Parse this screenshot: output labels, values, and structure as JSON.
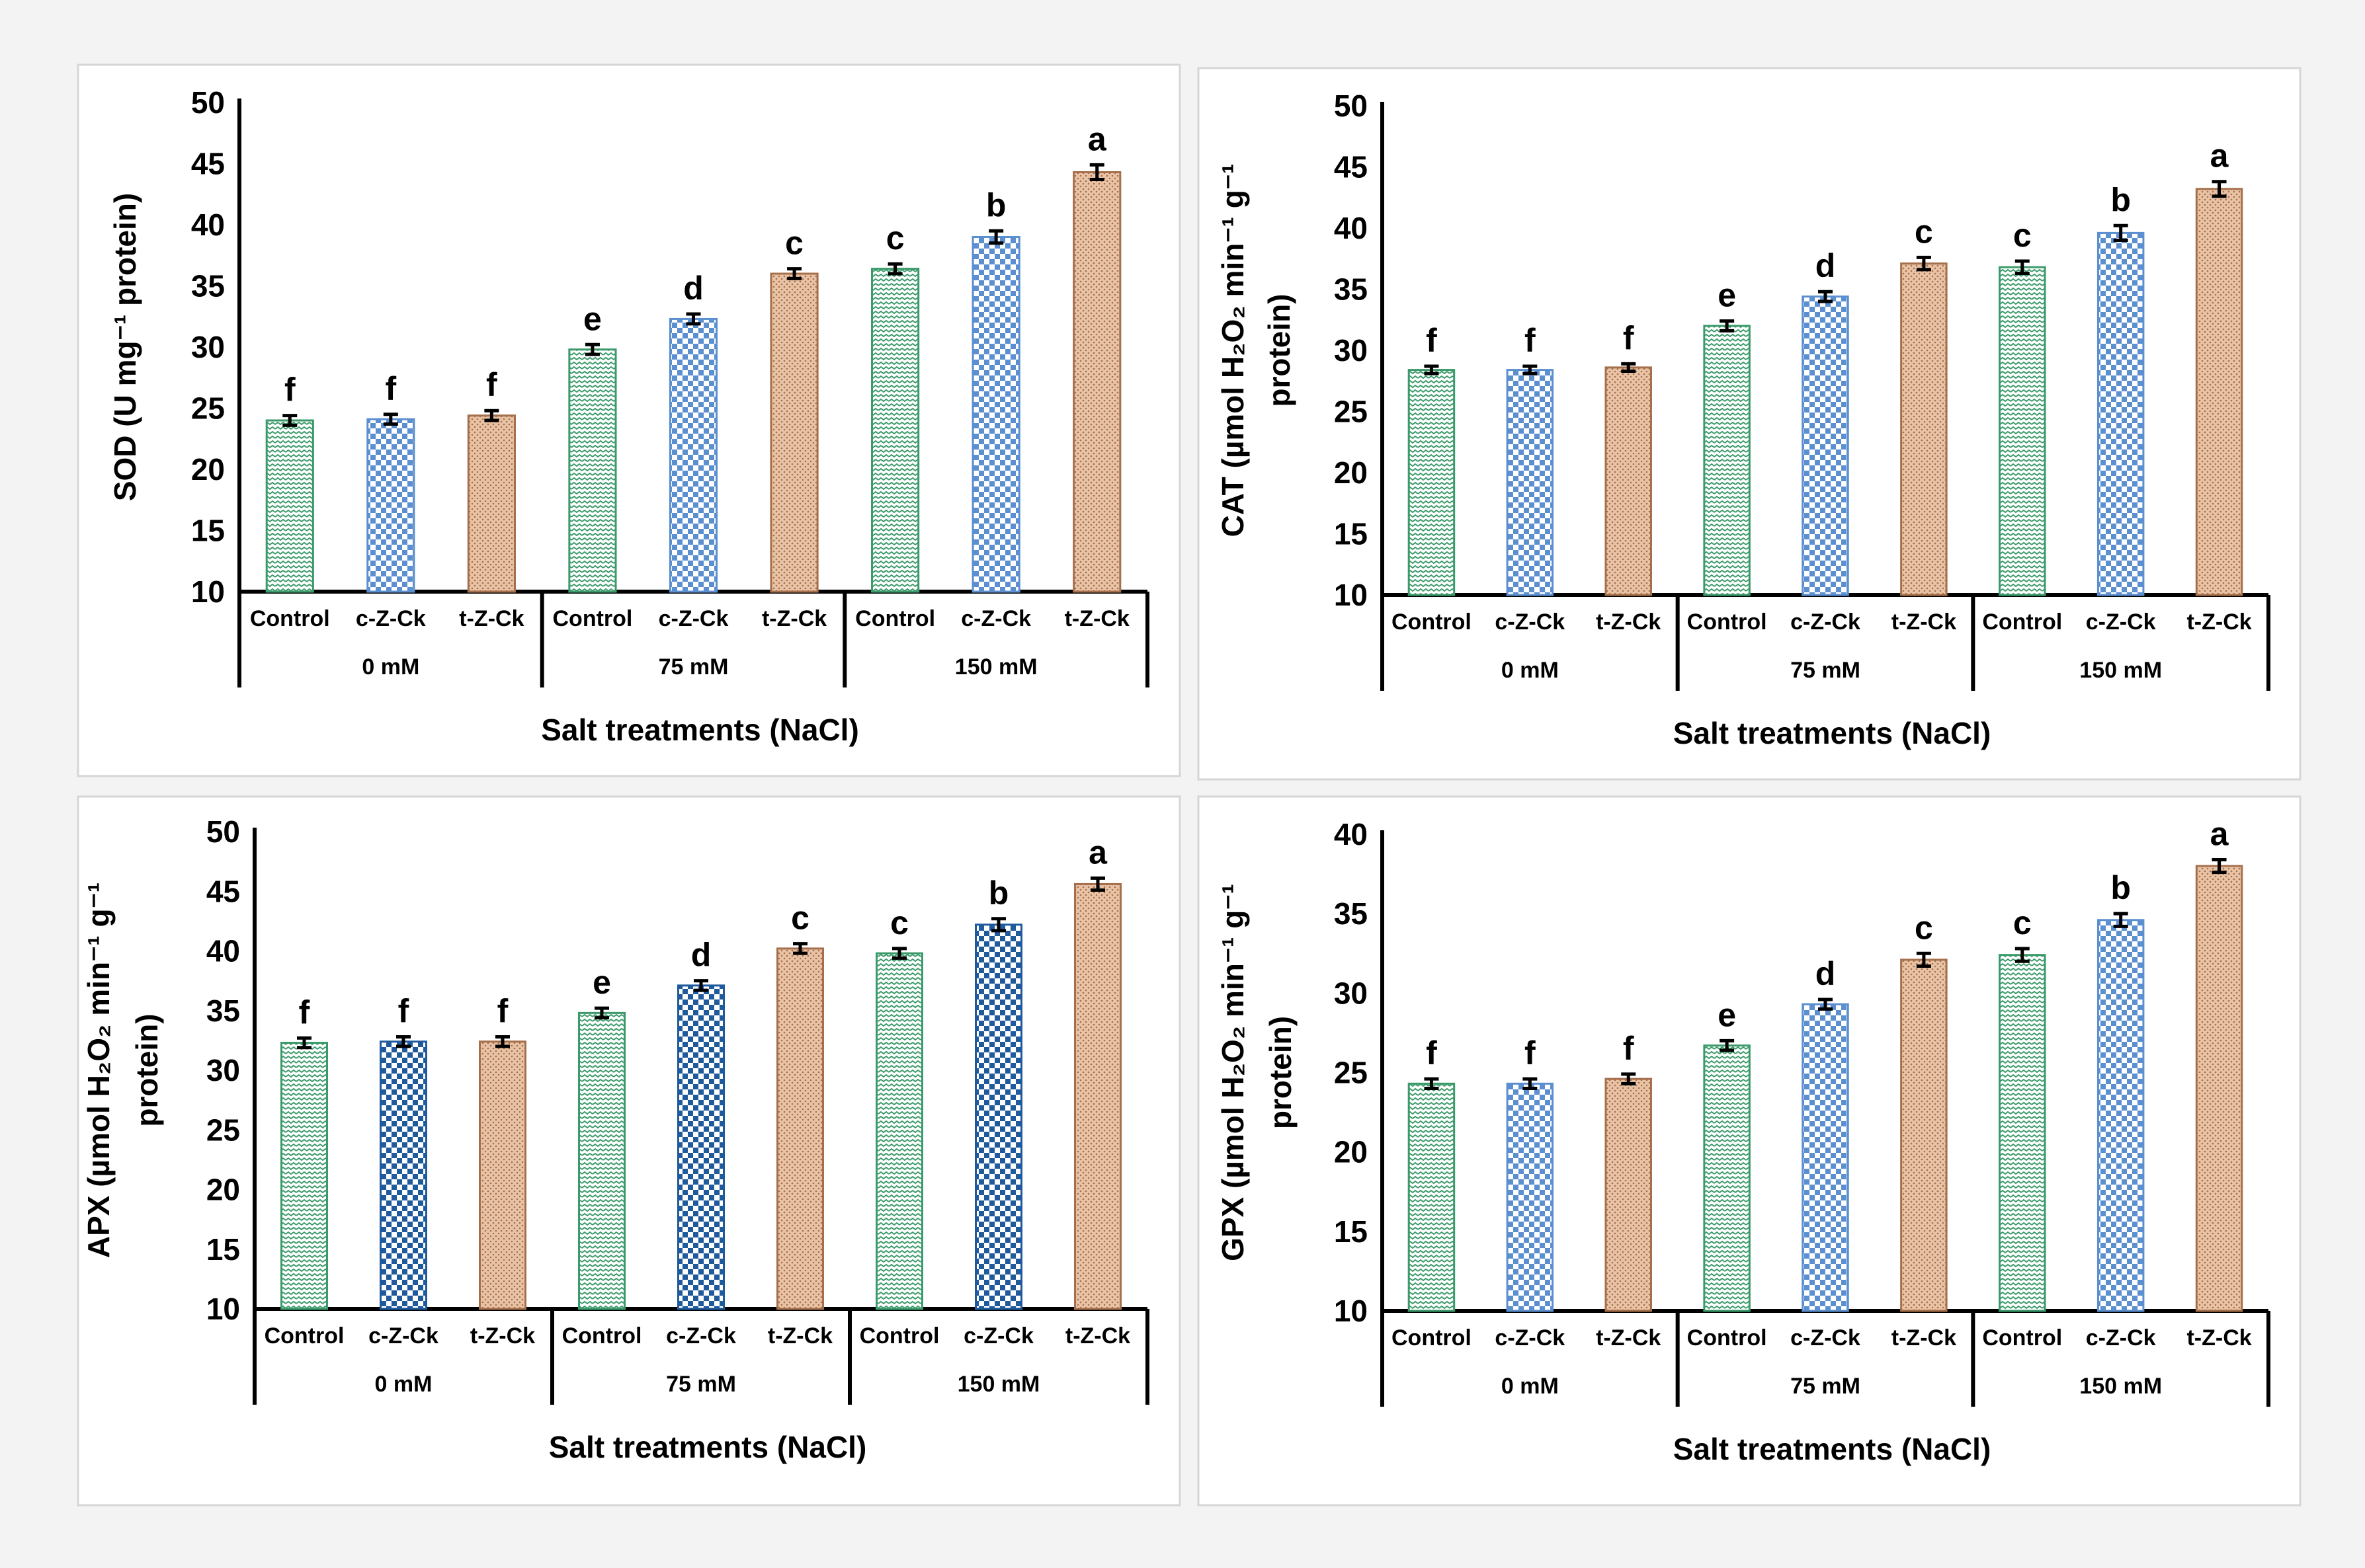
{
  "chart_data": [
    {
      "type": "bar",
      "ylabel_lines": [
        "SOD (U mg⁻¹ protein)"
      ],
      "xlabel": "Salt treatments (NaCl)",
      "ylim": [
        10,
        50
      ],
      "yticks": [
        10,
        15,
        20,
        25,
        30,
        35,
        40,
        45,
        50
      ],
      "groups": [
        "0 mM",
        "75 mM",
        "150 mM"
      ],
      "categories": [
        "Control",
        "c-Z-Ck",
        "t-Z-Ck",
        "Control",
        "c-Z-Ck",
        "t-Z-Ck",
        "Control",
        "c-Z-Ck",
        "t-Z-Ck"
      ],
      "values": [
        24.0,
        24.1,
        24.4,
        29.8,
        32.3,
        36.0,
        36.4,
        39.0,
        44.3
      ],
      "errors": [
        0.4,
        0.4,
        0.4,
        0.4,
        0.4,
        0.4,
        0.4,
        0.5,
        0.6
      ],
      "letters": [
        "f",
        "f",
        "f",
        "e",
        "d",
        "c",
        "c",
        "b",
        "a"
      ]
    },
    {
      "type": "bar",
      "ylabel_lines": [
        "CAT (µmol H₂O₂ min⁻¹ g⁻¹",
        "protein)"
      ],
      "xlabel": "Salt treatments (NaCl)",
      "ylim": [
        10,
        50
      ],
      "yticks": [
        10,
        15,
        20,
        25,
        30,
        35,
        40,
        45,
        50
      ],
      "groups": [
        "0 mM",
        "75 mM",
        "150 mM"
      ],
      "categories": [
        "Control",
        "c-Z-Ck",
        "t-Z-Ck",
        "Control",
        "c-Z-Ck",
        "t-Z-Ck",
        "Control",
        "c-Z-Ck",
        "t-Z-Ck"
      ],
      "values": [
        28.4,
        28.4,
        28.6,
        32.0,
        34.4,
        37.1,
        36.8,
        39.6,
        43.2
      ],
      "errors": [
        0.3,
        0.3,
        0.3,
        0.4,
        0.4,
        0.5,
        0.5,
        0.6,
        0.6
      ],
      "letters": [
        "f",
        "f",
        "f",
        "e",
        "d",
        "c",
        "c",
        "b",
        "a"
      ]
    },
    {
      "type": "bar",
      "ylabel_lines": [
        "APX (µmol H₂O₂ min⁻¹ g⁻¹",
        "protein)"
      ],
      "xlabel": "Salt treatments (NaCl)",
      "ylim": [
        10,
        50
      ],
      "yticks": [
        10,
        15,
        20,
        25,
        30,
        35,
        40,
        45,
        50
      ],
      "groups": [
        "0 mM",
        "75 mM",
        "150 mM"
      ],
      "categories": [
        "Control",
        "c-Z-Ck",
        "t-Z-Ck",
        "Control",
        "c-Z-Ck",
        "t-Z-Ck",
        "Control",
        "c-Z-Ck",
        "t-Z-Ck"
      ],
      "values": [
        32.3,
        32.4,
        32.4,
        34.8,
        37.1,
        40.2,
        39.8,
        42.2,
        45.6
      ],
      "errors": [
        0.4,
        0.4,
        0.4,
        0.4,
        0.4,
        0.4,
        0.4,
        0.5,
        0.5
      ],
      "letters": [
        "f",
        "f",
        "f",
        "e",
        "d",
        "c",
        "c",
        "b",
        "a"
      ]
    },
    {
      "type": "bar",
      "ylabel_lines": [
        "GPX (µmol H₂O₂ min⁻¹ g⁻¹",
        "protein)"
      ],
      "xlabel": "Salt treatments (NaCl)",
      "ylim": [
        10,
        40
      ],
      "yticks": [
        10,
        15,
        20,
        25,
        30,
        35,
        40
      ],
      "groups": [
        "0 mM",
        "75 mM",
        "150 mM"
      ],
      "categories": [
        "Control",
        "c-Z-Ck",
        "t-Z-Ck",
        "Control",
        "c-Z-Ck",
        "t-Z-Ck",
        "Control",
        "c-Z-Ck",
        "t-Z-Ck"
      ],
      "values": [
        24.3,
        24.3,
        24.6,
        26.7,
        29.3,
        32.1,
        32.4,
        34.6,
        38.0
      ],
      "errors": [
        0.3,
        0.3,
        0.3,
        0.3,
        0.3,
        0.4,
        0.4,
        0.4,
        0.4
      ],
      "letters": [
        "f",
        "f",
        "f",
        "e",
        "d",
        "c",
        "c",
        "b",
        "a"
      ]
    }
  ],
  "colors": {
    "control_fill": "#ffffff",
    "control_pattern": "#3a9a6a",
    "c_z_ck_pattern": "#5b8fd0",
    "c_z_ck_dark_pattern": "#1f5a9c",
    "t_z_ck_fill": "#e9c3a6",
    "t_z_ck_pattern": "#a66f4b"
  }
}
